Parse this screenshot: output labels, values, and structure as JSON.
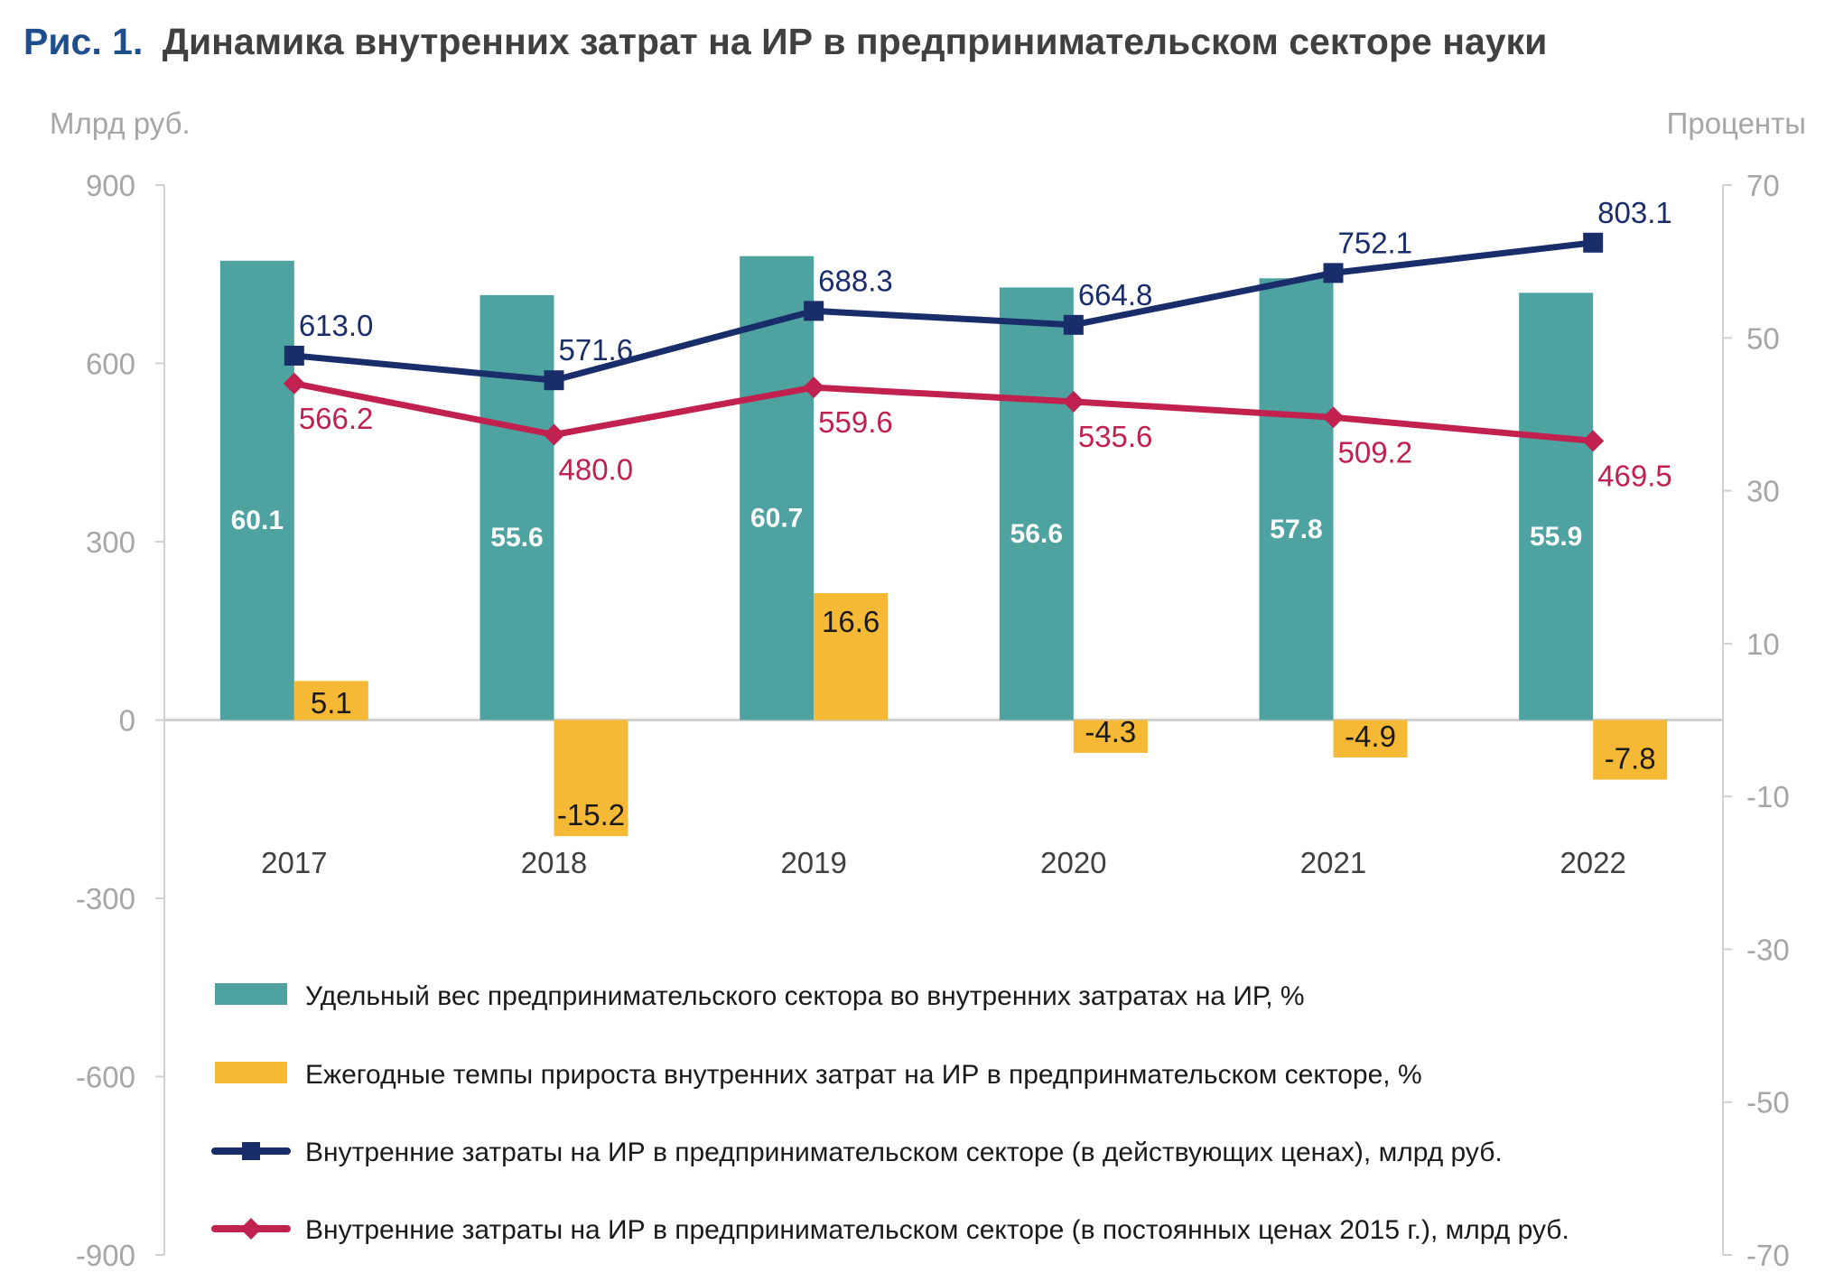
{
  "title": {
    "prefix": "Рис. 1.",
    "text": "Динамика внутренних затрат на ИР в предпринимательском секторе науки",
    "prefix_color": "#1f4e8c",
    "text_color": "#404040"
  },
  "chart_data": {
    "type": "bar+line",
    "categories": [
      "2017",
      "2018",
      "2019",
      "2020",
      "2021",
      "2022"
    ],
    "left_axis": {
      "label": "Млрд руб.",
      "ylim": [
        -900,
        900
      ],
      "ticks": [
        "900",
        "600",
        "300",
        "0",
        "-300",
        "-600",
        "-900"
      ],
      "tick_values": [
        900,
        600,
        300,
        0,
        -300,
        -600,
        -900
      ]
    },
    "right_axis": {
      "label": "Проценты",
      "ylim": [
        -70,
        70
      ],
      "ticks": [
        "70",
        "50",
        "30",
        "10",
        "-10",
        "-30",
        "-50",
        "-70"
      ],
      "tick_values": [
        70,
        50,
        30,
        10,
        -10,
        -30,
        -50,
        -70
      ]
    },
    "bar_series": [
      {
        "name": "Удельный вес предпринимательского  сектора во внутренних затратах на ИР, %",
        "axis": "right",
        "color": "#4ea3a0",
        "values": [
          60.1,
          55.6,
          60.7,
          56.6,
          57.8,
          55.9
        ],
        "labels": [
          "60.1",
          "55.6",
          "60.7",
          "56.6",
          "57.8",
          "55.9"
        ]
      },
      {
        "name": "Ежегодные темпы прироста внутренних затрат на ИР в предпринмательском секторе, %",
        "axis": "right",
        "color": "#f6b935",
        "values": [
          5.1,
          -15.2,
          16.6,
          -4.3,
          -4.9,
          -7.8
        ],
        "labels": [
          "5.1",
          "-15.2",
          "16.6",
          "-4.3",
          "-4.9",
          "-7.8"
        ]
      }
    ],
    "line_series": [
      {
        "name": "Внутренние затраты на ИР в предпринимательском секторе (в действующих ценах), млрд руб.",
        "axis": "left",
        "color": "#1a2d6b",
        "marker": "square",
        "values": [
          613.0,
          571.6,
          688.3,
          664.8,
          752.1,
          803.1
        ],
        "labels": [
          "613.0",
          "571.6",
          "688.3",
          "664.8",
          "752.1",
          "803.1"
        ]
      },
      {
        "name": "Внутренние затраты на ИР в предпринимательском секторе (в постоянных ценах 2015 г.), млрд руб.",
        "axis": "left",
        "color": "#c0214f",
        "marker": "diamond",
        "values": [
          566.2,
          480.0,
          559.6,
          535.6,
          509.2,
          469.5
        ],
        "labels": [
          "566.2",
          "480.0",
          "559.6",
          "535.6",
          "509.2",
          "469.5"
        ]
      }
    ],
    "grid": false,
    "legend_position": "bottom"
  }
}
